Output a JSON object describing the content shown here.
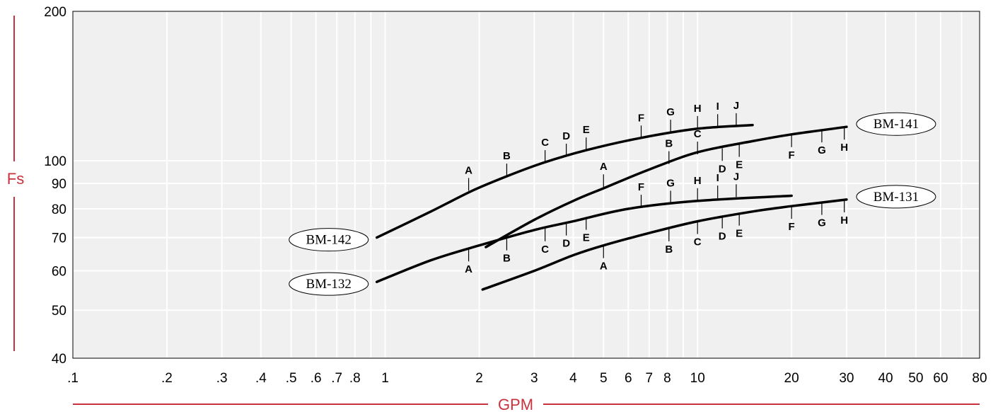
{
  "chart_data": {
    "type": "line",
    "xlabel": "GPM",
    "ylabel": "Fs",
    "xscale": "log",
    "yscale": "log",
    "xlim": [
      0.1,
      80
    ],
    "ylim": [
      40,
      200
    ],
    "x_ticks": [
      {
        "v": 0.1,
        "label": ".1"
      },
      {
        "v": 0.2,
        "label": ".2"
      },
      {
        "v": 0.3,
        "label": ".3"
      },
      {
        "v": 0.4,
        "label": ".4"
      },
      {
        "v": 0.5,
        "label": ".5"
      },
      {
        "v": 0.6,
        "label": ".6"
      },
      {
        "v": 0.7,
        "label": ".7"
      },
      {
        "v": 0.8,
        "label": ".8"
      },
      {
        "v": 1,
        "label": "1"
      },
      {
        "v": 2,
        "label": "2"
      },
      {
        "v": 3,
        "label": "3"
      },
      {
        "v": 4,
        "label": "4"
      },
      {
        "v": 5,
        "label": "5"
      },
      {
        "v": 6,
        "label": "6"
      },
      {
        "v": 7,
        "label": "7"
      },
      {
        "v": 8,
        "label": "8"
      },
      {
        "v": 10,
        "label": "10"
      },
      {
        "v": 20,
        "label": "20"
      },
      {
        "v": 30,
        "label": "30"
      },
      {
        "v": 40,
        "label": "40"
      },
      {
        "v": 50,
        "label": "50"
      },
      {
        "v": 60,
        "label": "60"
      },
      {
        "v": 80,
        "label": "80"
      }
    ],
    "y_ticks": [
      {
        "v": 40,
        "label": "40"
      },
      {
        "v": 50,
        "label": "50"
      },
      {
        "v": 60,
        "label": "60"
      },
      {
        "v": 70,
        "label": "70"
      },
      {
        "v": 80,
        "label": "80"
      },
      {
        "v": 90,
        "label": "90"
      },
      {
        "v": 100,
        "label": "100"
      },
      {
        "v": 200,
        "label": "200"
      }
    ],
    "x_grid": [
      0.2,
      0.3,
      0.4,
      0.5,
      0.6,
      0.7,
      0.8,
      0.9,
      1,
      2,
      3,
      4,
      5,
      6,
      7,
      8,
      9,
      10,
      20,
      30,
      40,
      50,
      60,
      70
    ],
    "y_grid": [
      50,
      60,
      70,
      80,
      90,
      100
    ],
    "grid": true,
    "series": [
      {
        "name": "BM-142",
        "points": [
          {
            "x": 0.94,
            "y": 70
          },
          {
            "x": 1.4,
            "y": 79
          },
          {
            "x": 1.9,
            "y": 87
          },
          {
            "x": 2.5,
            "y": 93.5
          },
          {
            "x": 3.2,
            "y": 99
          },
          {
            "x": 4.4,
            "y": 105
          },
          {
            "x": 6.5,
            "y": 111
          },
          {
            "x": 10,
            "y": 116
          },
          {
            "x": 15,
            "y": 118
          }
        ],
        "markers": [
          {
            "x": 1.85,
            "y": 87,
            "label": "A"
          },
          {
            "x": 2.45,
            "y": 93,
            "label": "B"
          },
          {
            "x": 3.25,
            "y": 99,
            "label": "C"
          },
          {
            "x": 3.8,
            "y": 102,
            "label": "D"
          },
          {
            "x": 4.4,
            "y": 105,
            "label": "E"
          },
          {
            "x": 6.6,
            "y": 111,
            "label": "F"
          },
          {
            "x": 8.2,
            "y": 114,
            "label": "G"
          },
          {
            "x": 10,
            "y": 116,
            "label": "H"
          },
          {
            "x": 11.6,
            "y": 117,
            "label": "I"
          },
          {
            "x": 13.3,
            "y": 117.5,
            "label": "J"
          }
        ]
      },
      {
        "name": "BM-141",
        "points": [
          {
            "x": 2.1,
            "y": 67
          },
          {
            "x": 3,
            "y": 76
          },
          {
            "x": 4,
            "y": 83
          },
          {
            "x": 5,
            "y": 88
          },
          {
            "x": 7,
            "y": 96
          },
          {
            "x": 10,
            "y": 104
          },
          {
            "x": 15,
            "y": 109.5
          },
          {
            "x": 20,
            "y": 113
          },
          {
            "x": 30,
            "y": 117
          }
        ],
        "markers": [
          {
            "x": 5,
            "y": 88.5,
            "label": "A"
          },
          {
            "x": 8.1,
            "y": 98.5,
            "label": "B"
          },
          {
            "x": 10,
            "y": 103,
            "label": "C"
          },
          {
            "x": 12,
            "y": 106,
            "label": "D"
          },
          {
            "x": 13.6,
            "y": 108,
            "label": "E"
          },
          {
            "x": 20,
            "y": 113,
            "label": "F"
          },
          {
            "x": 25,
            "y": 115.5,
            "label": "G"
          },
          {
            "x": 29.5,
            "y": 117,
            "label": "H"
          }
        ]
      },
      {
        "name": "BM-132",
        "points": [
          {
            "x": 0.94,
            "y": 57
          },
          {
            "x": 1.4,
            "y": 63
          },
          {
            "x": 2,
            "y": 67.5
          },
          {
            "x": 3,
            "y": 72.5
          },
          {
            "x": 4,
            "y": 75.5
          },
          {
            "x": 6,
            "y": 80
          },
          {
            "x": 10,
            "y": 83
          },
          {
            "x": 20,
            "y": 85
          }
        ],
        "markers": [
          {
            "x": 1.85,
            "y": 66.5,
            "label": "A"
          },
          {
            "x": 2.45,
            "y": 70,
            "label": "B"
          },
          {
            "x": 3.25,
            "y": 73,
            "label": "C"
          },
          {
            "x": 3.8,
            "y": 75,
            "label": "D"
          },
          {
            "x": 4.4,
            "y": 77,
            "label": "E"
          },
          {
            "x": 6.6,
            "y": 80.5,
            "label": "F"
          },
          {
            "x": 8.2,
            "y": 82,
            "label": "G"
          },
          {
            "x": 10,
            "y": 83,
            "label": "H"
          },
          {
            "x": 11.6,
            "y": 84,
            "label": "I"
          },
          {
            "x": 13.3,
            "y": 84.5,
            "label": "J"
          }
        ]
      },
      {
        "name": "BM-131",
        "points": [
          {
            "x": 2.05,
            "y": 55
          },
          {
            "x": 3,
            "y": 60
          },
          {
            "x": 4,
            "y": 64.5
          },
          {
            "x": 5,
            "y": 67.5
          },
          {
            "x": 7,
            "y": 71.5
          },
          {
            "x": 10,
            "y": 75.5
          },
          {
            "x": 15,
            "y": 79
          },
          {
            "x": 20,
            "y": 81
          },
          {
            "x": 30,
            "y": 83.5
          }
        ],
        "markers": [
          {
            "x": 5,
            "y": 67.5,
            "label": "A"
          },
          {
            "x": 8.1,
            "y": 73,
            "label": "B"
          },
          {
            "x": 10,
            "y": 75.5,
            "label": "C"
          },
          {
            "x": 12,
            "y": 77.5,
            "label": "D"
          },
          {
            "x": 13.6,
            "y": 78.5,
            "label": "E"
          },
          {
            "x": 20,
            "y": 81,
            "label": "F"
          },
          {
            "x": 25,
            "y": 82.5,
            "label": "G"
          },
          {
            "x": 29.5,
            "y": 83.5,
            "label": "H"
          }
        ]
      }
    ],
    "colors": {
      "plot_background": "#f0f0f0",
      "grid": "#ffffff",
      "curve": "#000000",
      "axis_title": "#c8323e",
      "accent_line": "#c8323e"
    }
  }
}
